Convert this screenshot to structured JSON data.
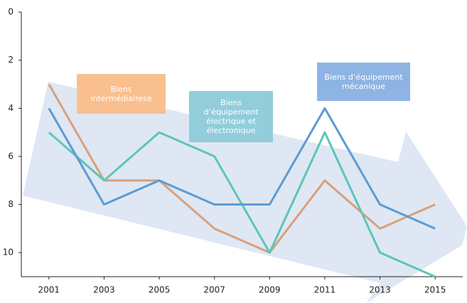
{
  "chart_data": {
    "type": "line",
    "x": [
      2001,
      2003,
      2005,
      2007,
      2009,
      2011,
      2013,
      2015
    ],
    "series": [
      {
        "name": "Biens intermédiairese",
        "color": "#d9a07a",
        "box_color": "#f9bf8f",
        "values": [
          3,
          7,
          7,
          9,
          10,
          7,
          9,
          8
        ]
      },
      {
        "name": "Biens d’équipement électrique et électronique",
        "color": "#5cc6b6",
        "box_color": "#92cddc",
        "values": [
          5,
          7,
          5,
          6,
          10,
          5,
          10,
          11
        ]
      },
      {
        "name": "Biens d’équipement mécanique",
        "color": "#5b9bd5",
        "box_color": "#8eb4e3",
        "values": [
          4,
          8,
          7,
          8,
          8,
          4,
          8,
          9
        ]
      }
    ],
    "xlim": [
      2000,
      2016
    ],
    "xticks": [
      2001,
      2003,
      2005,
      2007,
      2009,
      2011,
      2013,
      2015
    ],
    "ylim": [
      0,
      11
    ],
    "yticks": [
      0,
      2,
      4,
      6,
      8,
      10
    ],
    "y_inverted": true
  }
}
